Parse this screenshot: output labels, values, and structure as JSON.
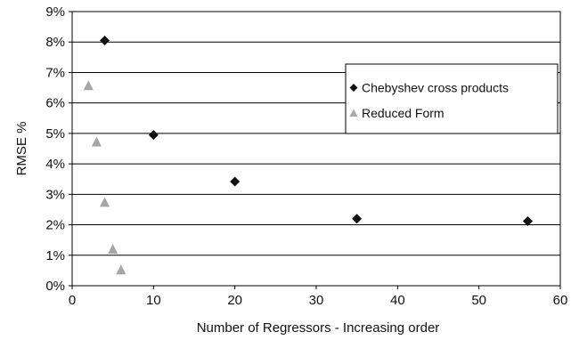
{
  "chart_data": {
    "type": "scatter",
    "title": "",
    "xlabel": "Number of Regressors - Increasing order",
    "ylabel": "RMSE %",
    "xlim": [
      0,
      60
    ],
    "ylim": [
      0,
      9
    ],
    "x_ticks": [
      0,
      10,
      20,
      30,
      40,
      50,
      60
    ],
    "y_ticks": [
      0,
      1,
      2,
      3,
      4,
      5,
      6,
      7,
      8,
      9
    ],
    "y_tick_format": "percent",
    "grid": "horizontal",
    "legend_position": "right",
    "series": [
      {
        "name": "Chebyshev cross products",
        "marker": "diamond",
        "color": "#111111",
        "points": [
          {
            "x": 4,
            "y": 8.05
          },
          {
            "x": 10,
            "y": 4.95
          },
          {
            "x": 20,
            "y": 3.42
          },
          {
            "x": 35,
            "y": 2.2
          },
          {
            "x": 56,
            "y": 2.12
          }
        ]
      },
      {
        "name": "Reduced Form",
        "marker": "triangle",
        "color": "#a6a6a6",
        "points": [
          {
            "x": 2,
            "y": 6.55
          },
          {
            "x": 3,
            "y": 4.7
          },
          {
            "x": 4,
            "y": 2.72
          },
          {
            "x": 5,
            "y": 1.18
          },
          {
            "x": 6,
            "y": 0.5
          }
        ]
      }
    ]
  }
}
